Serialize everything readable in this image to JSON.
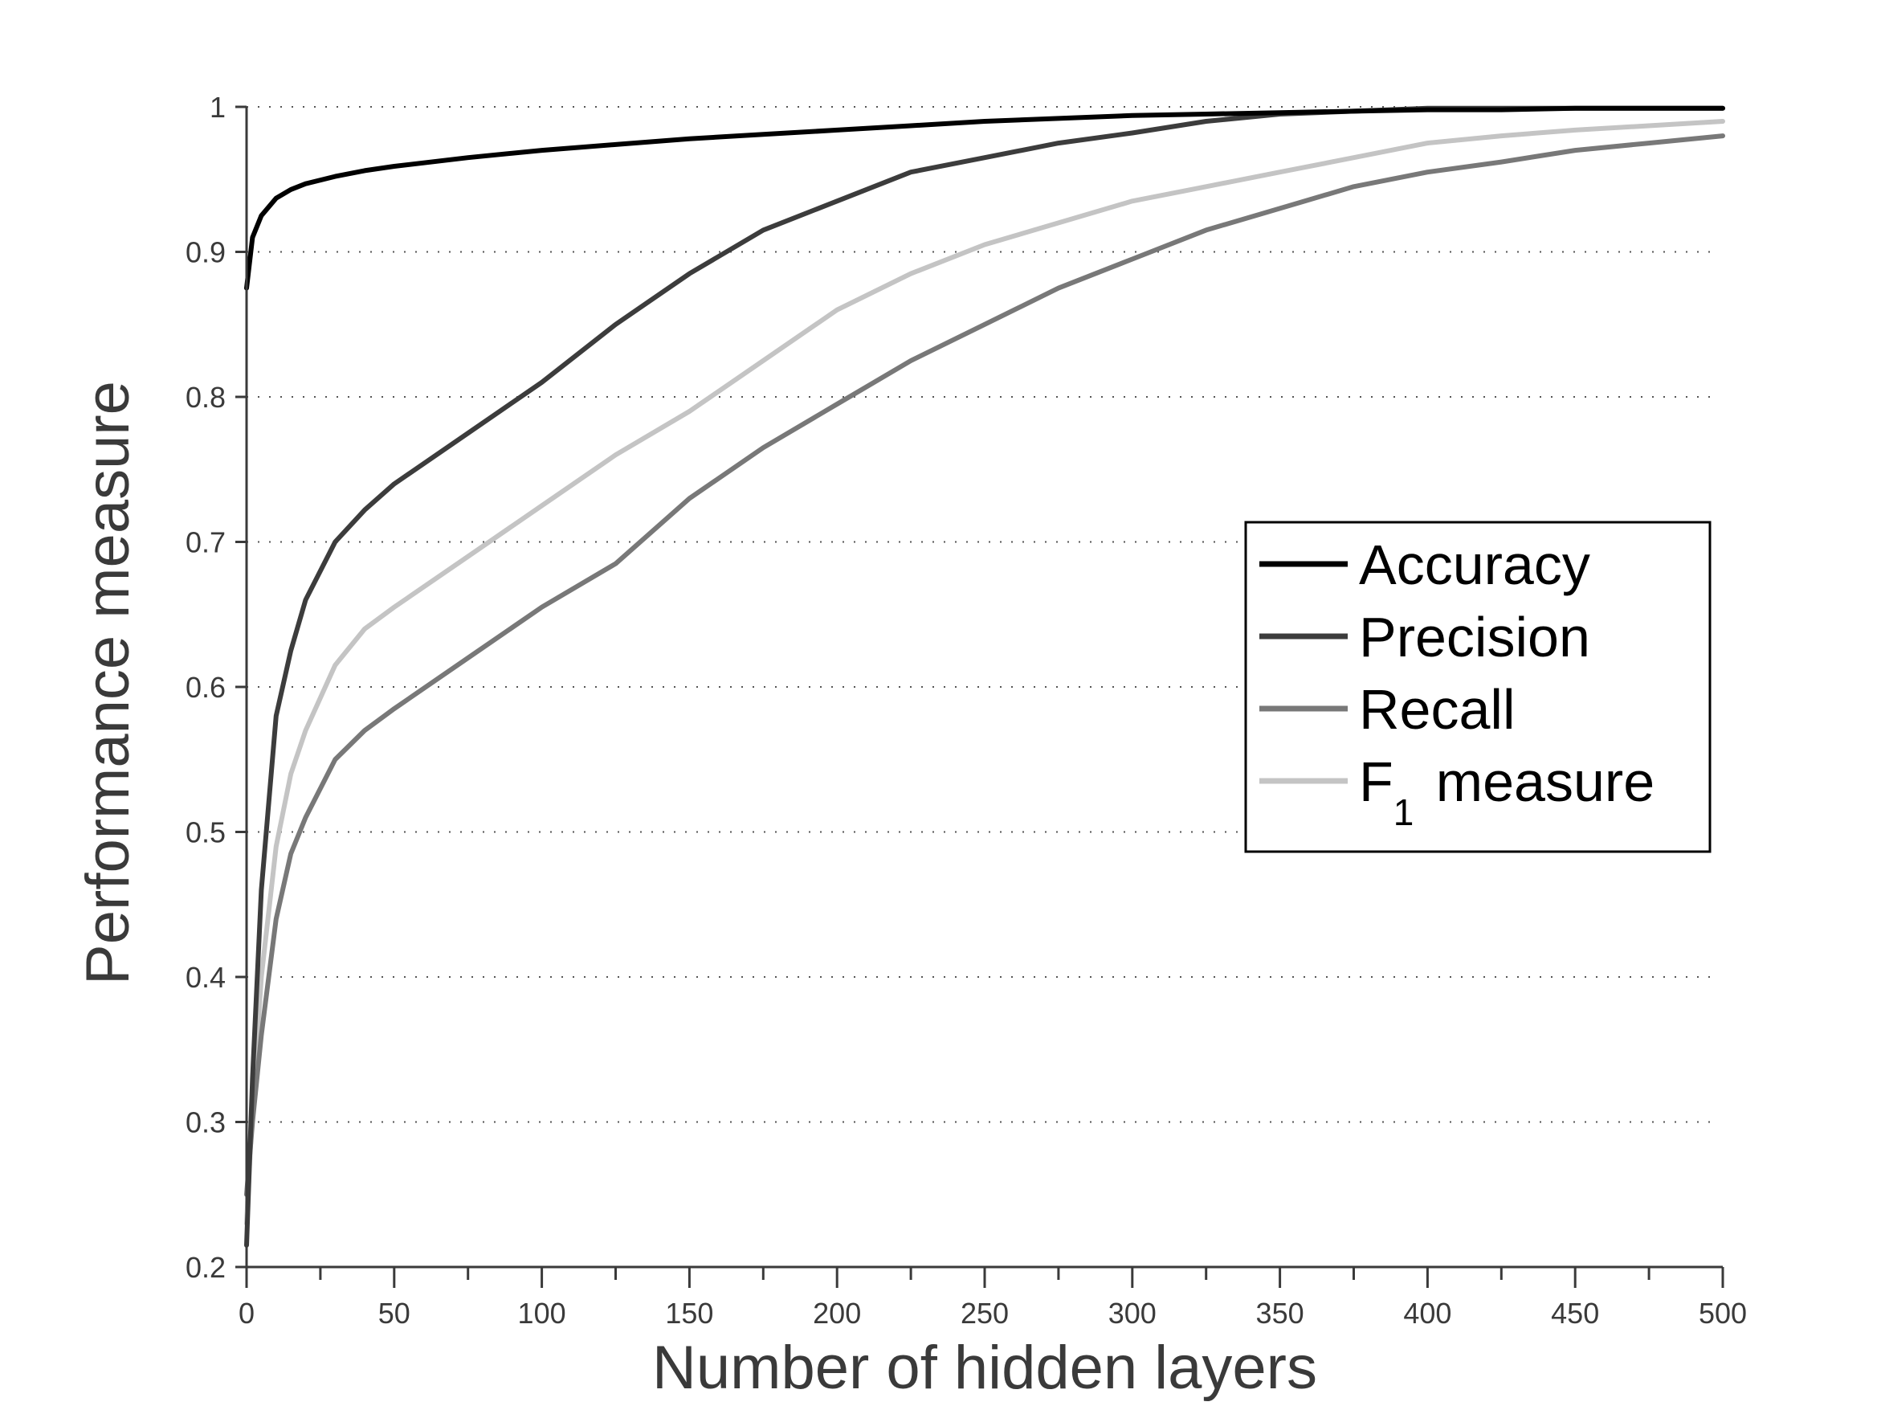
{
  "chart_data": {
    "type": "line",
    "xlabel": "Number of hidden layers",
    "ylabel": "Performance measure",
    "xlim": [
      0,
      500
    ],
    "ylim": [
      0.2,
      1
    ],
    "xticks": [
      0,
      50,
      100,
      150,
      200,
      250,
      300,
      350,
      400,
      450,
      500
    ],
    "yticks": [
      0.2,
      0.3,
      0.4,
      0.5,
      0.6,
      0.7,
      0.8,
      0.9,
      1
    ],
    "ytick_labels": [
      "0.2",
      "0.3",
      "0.4",
      "0.5",
      "0.6",
      "0.7",
      "0.8",
      "0.9",
      "1"
    ],
    "grid": "horizontal dotted",
    "legend_position": "right",
    "x": [
      0,
      2,
      5,
      10,
      15,
      20,
      30,
      40,
      50,
      75,
      100,
      125,
      150,
      175,
      200,
      225,
      250,
      275,
      300,
      325,
      350,
      375,
      400,
      425,
      450,
      475,
      500
    ],
    "series": [
      {
        "name": "Accuracy",
        "name_main": "Accuracy",
        "name_sub": "",
        "name_rest": "",
        "color": "#000000",
        "values": [
          0.875,
          0.91,
          0.925,
          0.937,
          0.943,
          0.947,
          0.952,
          0.956,
          0.959,
          0.965,
          0.97,
          0.974,
          0.978,
          0.981,
          0.984,
          0.987,
          0.99,
          0.992,
          0.994,
          0.995,
          0.996,
          0.997,
          0.998,
          0.998,
          0.999,
          0.999,
          0.999
        ]
      },
      {
        "name": "Precision",
        "name_main": "Precision",
        "name_sub": "",
        "name_rest": "",
        "color": "#3c3c3c",
        "values": [
          0.215,
          0.33,
          0.46,
          0.58,
          0.625,
          0.66,
          0.7,
          0.722,
          0.74,
          0.775,
          0.81,
          0.85,
          0.885,
          0.915,
          0.935,
          0.955,
          0.965,
          0.975,
          0.982,
          0.99,
          0.995,
          0.997,
          0.999,
          0.999,
          0.999,
          0.999,
          0.999
        ]
      },
      {
        "name": "Recall",
        "name_main": "Recall",
        "name_sub": "",
        "name_rest": "",
        "color": "#787878",
        "values": [
          0.25,
          0.3,
          0.36,
          0.44,
          0.485,
          0.51,
          0.55,
          0.57,
          0.585,
          0.62,
          0.655,
          0.685,
          0.73,
          0.765,
          0.795,
          0.825,
          0.85,
          0.875,
          0.895,
          0.915,
          0.93,
          0.945,
          0.955,
          0.962,
          0.97,
          0.975,
          0.98
        ]
      },
      {
        "name": "F1 measure",
        "name_main": "F",
        "name_sub": "1",
        "name_rest": " measure",
        "color": "#c4c4c4",
        "values": [
          0.23,
          0.31,
          0.4,
          0.49,
          0.54,
          0.57,
          0.615,
          0.64,
          0.655,
          0.69,
          0.725,
          0.76,
          0.79,
          0.825,
          0.86,
          0.885,
          0.905,
          0.92,
          0.935,
          0.945,
          0.955,
          0.965,
          0.975,
          0.98,
          0.984,
          0.987,
          0.99
        ]
      }
    ]
  }
}
